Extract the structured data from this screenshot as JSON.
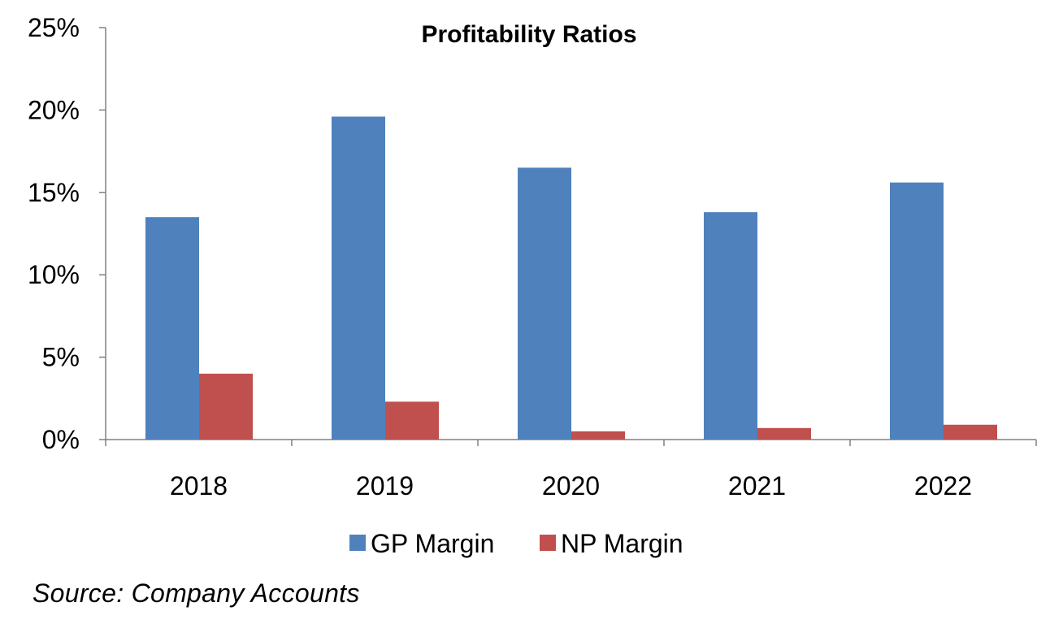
{
  "chart_data": {
    "type": "bar",
    "title": "Profitability Ratios",
    "xlabel": "",
    "ylabel": "",
    "categories": [
      "2018",
      "2019",
      "2020",
      "2021",
      "2022"
    ],
    "series": [
      {
        "name": "GP Margin",
        "values": [
          13.5,
          19.6,
          16.5,
          13.8,
          15.6
        ]
      },
      {
        "name": "NP Margin",
        "values": [
          4.0,
          2.3,
          0.5,
          0.7,
          0.9
        ]
      }
    ],
    "ylim": [
      0,
      25
    ],
    "yticks": [
      0,
      5,
      10,
      15,
      20,
      25
    ],
    "ytick_labels": [
      "0%",
      "5%",
      "10%",
      "15%",
      "20%",
      "25%"
    ],
    "legend": "bottom",
    "grid": false
  },
  "colors": {
    "gp": "#4f81bd",
    "np": "#c0504d",
    "axis": "#808080"
  },
  "source": "Source: Company Accounts"
}
